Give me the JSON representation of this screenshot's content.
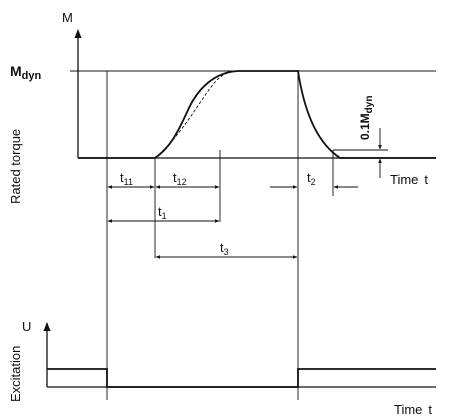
{
  "diagram": {
    "upper": {
      "axis_label_M": "M",
      "level_label": "M",
      "level_label_sub": "dyn",
      "y_axis_title": "Rated torque",
      "threshold_label": "0.1M",
      "threshold_label_sub": "dyn",
      "x_axis_label": "Time",
      "x_axis_unit": "t",
      "intervals": {
        "t11": {
          "base": "t",
          "sub": "11"
        },
        "t12": {
          "base": "t",
          "sub": "12"
        },
        "t1": {
          "base": "t",
          "sub": "1"
        },
        "t2": {
          "base": "t",
          "sub": "2"
        },
        "t3": {
          "base": "t",
          "sub": "3"
        }
      }
    },
    "lower": {
      "axis_label_U": "U",
      "y_axis_title": "Excitation",
      "x_axis_label": "Time",
      "x_axis_unit": "t"
    }
  }
}
